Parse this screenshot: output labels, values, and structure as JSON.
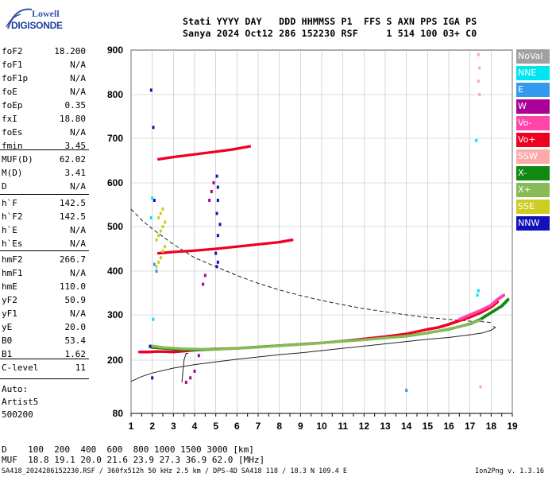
{
  "logo": {
    "line1": "Lowell",
    "line2": "DIGISONDE"
  },
  "header": {
    "line1": "Stati YYYY DAY   DDD HHMMSS P1  FFS S AXN PPS IGA PS",
    "line2": "Sanya 2024 Oct12 286 152230 RSF     1 514 100 03+ C0"
  },
  "params": {
    "group1": [
      {
        "name": "foF2",
        "value": "18.200"
      },
      {
        "name": "foF1",
        "value": "N/A"
      },
      {
        "name": "foF1p",
        "value": "N/A"
      },
      {
        "name": "foE",
        "value": "N/A"
      },
      {
        "name": "foEp",
        "value": "0.35"
      },
      {
        "name": "fxI",
        "value": "18.80"
      },
      {
        "name": "foEs",
        "value": "N/A"
      },
      {
        "name": "fmin",
        "value": "3.45"
      }
    ],
    "group2": [
      {
        "name": "MUF(D)",
        "value": "62.02"
      },
      {
        "name": "M(D)",
        "value": "3.41"
      },
      {
        "name": "D",
        "value": "N/A"
      }
    ],
    "group3": [
      {
        "name": "h`F",
        "value": "142.5"
      },
      {
        "name": "h`F2",
        "value": "142.5"
      },
      {
        "name": "h`E",
        "value": "N/A"
      },
      {
        "name": "h`Es",
        "value": "N/A"
      }
    ],
    "group4": [
      {
        "name": "hmF2",
        "value": "266.7"
      },
      {
        "name": "hmF1",
        "value": "N/A"
      },
      {
        "name": "hmE",
        "value": "110.0"
      },
      {
        "name": "yF2",
        "value": "50.9"
      },
      {
        "name": "yF1",
        "value": "N/A"
      },
      {
        "name": "yE",
        "value": "20.0"
      },
      {
        "name": "B0",
        "value": "53.4"
      },
      {
        "name": "B1",
        "value": "1.62"
      }
    ],
    "group5": [
      {
        "name": "C-level",
        "value": "11"
      }
    ]
  },
  "autoscaling": {
    "line1": "Auto:",
    "line2": "Artist5",
    "line3": "500200"
  },
  "legend": [
    {
      "label": "NoVal",
      "color": "#a0a0a0"
    },
    {
      "label": "NNE",
      "color": "#00e5f0"
    },
    {
      "label": "E",
      "color": "#3399ee"
    },
    {
      "label": "W",
      "color": "#aa0099"
    },
    {
      "label": "Vo-",
      "color": "#ff44aa"
    },
    {
      "label": "Vo+",
      "color": "#ee0022"
    },
    {
      "label": "SSW",
      "color": "#ffaaaa"
    },
    {
      "label": "X-",
      "color": "#118811"
    },
    {
      "label": "X+",
      "color": "#88bb55"
    },
    {
      "label": "SSE",
      "color": "#cccc22"
    },
    {
      "label": "NNW",
      "color": "#1111bb"
    }
  ],
  "chart_data": {
    "type": "scatter",
    "title": "",
    "xlabel": "",
    "ylabel": "",
    "xlim": [
      1,
      19
    ],
    "ylim": [
      80,
      900
    ],
    "x_ticks": [
      1,
      2,
      3,
      4,
      5,
      6,
      7,
      8,
      9,
      10,
      11,
      12,
      13,
      14,
      15,
      16,
      17,
      18,
      19
    ],
    "y_ticks": [
      80,
      200,
      300,
      400,
      500,
      600,
      700,
      800,
      900
    ],
    "grid": true,
    "series": [
      {
        "name": "Vo+",
        "color": "#ee0022",
        "x": [
          1.4,
          1.8,
          2.3,
          3.0,
          3.5,
          4.0,
          4.5,
          5.0,
          6.0,
          7.0,
          8.0,
          9.0,
          10.0,
          11.0,
          12.0,
          13.0,
          14.0,
          15.0,
          15.5,
          16.0,
          16.5,
          17.0,
          17.5,
          18.0,
          18.3
        ],
        "y": [
          218,
          218,
          219,
          218,
          220,
          222,
          224,
          225,
          226,
          229,
          232,
          235,
          238,
          242,
          247,
          252,
          258,
          268,
          272,
          279,
          287,
          295,
          305,
          318,
          330
        ]
      },
      {
        "name": "Vo-",
        "color": "#ff44aa",
        "x": [
          16.5,
          17.0,
          17.5,
          18.0,
          18.3,
          18.6
        ],
        "y": [
          290,
          300,
          310,
          322,
          335,
          345
        ]
      },
      {
        "name": "X-",
        "color": "#118811",
        "x": [
          2.0,
          3.0,
          4.0,
          5.0,
          6.0,
          7.0,
          8.0,
          9.0,
          10.0,
          11.0,
          12.0,
          13.0,
          14.0,
          15.0,
          16.0,
          17.0,
          17.5,
          18.0,
          18.5,
          18.8
        ],
        "y": [
          228,
          224,
          222,
          224,
          226,
          229,
          232,
          235,
          238,
          242,
          245,
          249,
          253,
          260,
          268,
          280,
          290,
          305,
          320,
          335
        ]
      },
      {
        "name": "X+",
        "color": "#88bb55",
        "x": [
          1.9,
          2.5,
          3.5,
          4.5,
          5.5,
          6.5,
          7.5,
          8.5,
          9.5,
          10.5,
          11.5,
          12.5,
          13.5,
          14.5,
          15.5,
          16.5,
          17.5
        ],
        "y": [
          232,
          228,
          225,
          224,
          225,
          227,
          230,
          233,
          236,
          240,
          243,
          247,
          251,
          256,
          264,
          274,
          288
        ]
      },
      {
        "name": "Vo+",
        "color": "#ee0022",
        "x": [
          2.3,
          3.0,
          4.0,
          5.0,
          6.0,
          7.0,
          8.0,
          8.6
        ],
        "y": [
          440,
          443,
          446,
          450,
          455,
          460,
          465,
          470
        ]
      },
      {
        "name": "Vo+",
        "color": "#ee0022",
        "x": [
          2.3,
          3.0,
          4.0,
          5.0,
          5.8,
          6.6
        ],
        "y": [
          653,
          658,
          664,
          670,
          675,
          682
        ]
      },
      {
        "name": "SSE",
        "color": "#cccc22",
        "x": [
          2.2,
          2.3,
          2.4,
          2.5,
          2.6,
          2.2,
          2.3,
          2.4,
          2.5,
          2.6,
          2.3,
          2.4,
          2.5
        ],
        "y": [
          410,
          420,
          430,
          445,
          455,
          470,
          480,
          490,
          500,
          510,
          520,
          530,
          540
        ]
      },
      {
        "name": "NNW",
        "color": "#1111bb",
        "x": [
          1.95,
          2.05,
          5.05,
          5.1,
          5.1,
          5.05,
          5.2,
          5.1,
          5.0,
          5.1,
          5.05,
          1.9,
          2.0,
          2.1
        ],
        "y": [
          810,
          725,
          615,
          590,
          560,
          530,
          505,
          480,
          440,
          420,
          410,
          230,
          160,
          560
        ]
      },
      {
        "name": "NNE",
        "color": "#00e5f0",
        "x": [
          2.0,
          1.95,
          2.05,
          17.4,
          17.35,
          17.3
        ],
        "y": [
          565,
          520,
          290,
          355,
          345,
          695
        ]
      },
      {
        "name": "E",
        "color": "#3399ee",
        "x": [
          14.0,
          2.1,
          2.2
        ],
        "y": [
          132,
          415,
          400
        ]
      },
      {
        "name": "SSW",
        "color": "#ffaaaa",
        "x": [
          17.4,
          17.45,
          17.4,
          17.45,
          17.5
        ],
        "y": [
          890,
          860,
          830,
          800,
          140
        ]
      },
      {
        "name": "W",
        "color": "#aa0099",
        "x": [
          3.6,
          3.8,
          4.0,
          4.2,
          4.4,
          4.5,
          4.7,
          4.8,
          4.9
        ],
        "y": [
          150,
          160,
          175,
          210,
          370,
          390,
          560,
          580,
          600
        ]
      }
    ],
    "model_profile": {
      "name": "profile",
      "x": [
        1.0,
        1.5,
        2.0,
        3.0,
        4.0,
        5.0,
        6.0,
        7.0,
        8.0,
        9.0,
        10.0,
        11.0,
        12.0,
        13.0,
        14.0,
        15.0,
        16.0,
        17.0,
        17.6,
        18.0,
        18.2,
        18.1
      ],
      "y": [
        152,
        163,
        171,
        182,
        190,
        196,
        202,
        207,
        212,
        216,
        221,
        226,
        231,
        236,
        241,
        246,
        250,
        256,
        260,
        266,
        272,
        275
      ]
    },
    "muf_curve": {
      "name": "MUF",
      "x": [
        1.0,
        1.5,
        2.0,
        3.0,
        4.0,
        5.0,
        6.0,
        7.0,
        8.0,
        9.0,
        10.0,
        11.0,
        12.0,
        13.0,
        14.0,
        15.0,
        16.0,
        17.0,
        17.5,
        17.8,
        18.0
      ],
      "y": [
        540,
        515,
        495,
        460,
        430,
        410,
        390,
        372,
        357,
        344,
        333,
        323,
        314,
        307,
        300,
        294,
        290,
        286,
        285,
        284,
        283
      ]
    },
    "trace_line": {
      "name": "trace",
      "x": [
        3.4,
        3.5,
        3.6,
        3.7
      ],
      "y": [
        150,
        200,
        215,
        215
      ]
    }
  },
  "footer": {
    "line1": "D    100  200  400  600  800 1000 1500 3000 [km]",
    "line2": "MUF  18.8 19.1 20.0 21.6 23.9 27.3 36.9 62.0 [MHz]",
    "line3": "SA418_2024286152230.RSF / 360fx512h 50 kHz 2.5 km / DPS-4D SA418 118 / 18.3 N 109.4 E",
    "line4": "Ion2Png v. 1.3.16"
  }
}
